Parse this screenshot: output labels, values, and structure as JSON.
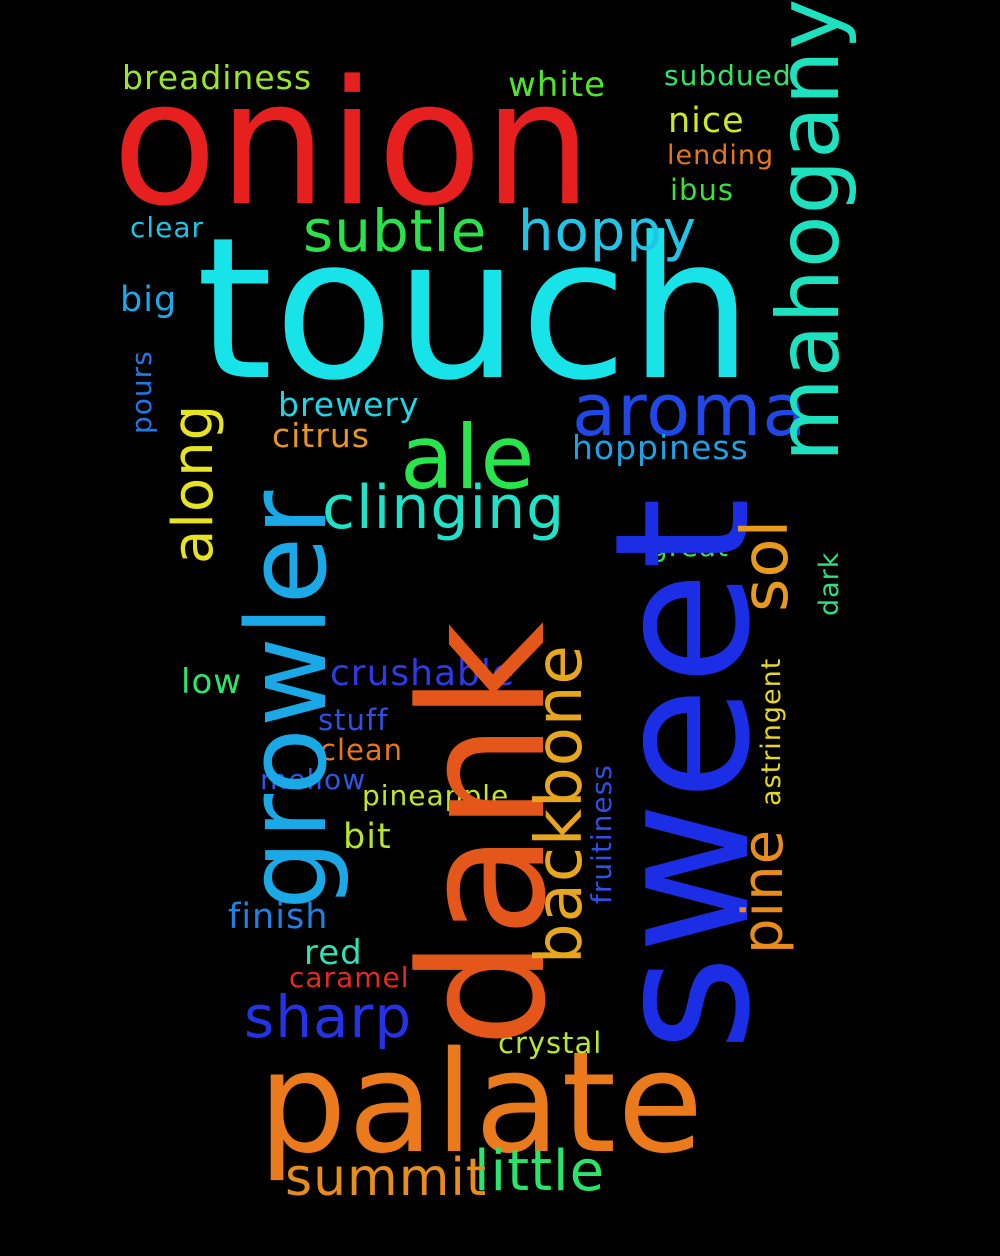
{
  "words": [
    {
      "id": "touch",
      "text": "touch",
      "color": "#17e3e8"
    },
    {
      "id": "sweet",
      "text": "sweet",
      "color": "#1b2ee6"
    },
    {
      "id": "dank",
      "text": "dank",
      "color": "#e5561a"
    },
    {
      "id": "onion",
      "text": "onion",
      "color": "#e5201f"
    },
    {
      "id": "palate",
      "text": "palate",
      "color": "#ea7a1c"
    },
    {
      "id": "growler",
      "text": "growler",
      "color": "#1aa9e6"
    },
    {
      "id": "mahogany",
      "text": "mahogany",
      "color": "#1ee1c0"
    },
    {
      "id": "ale",
      "text": "ale",
      "color": "#27e54a"
    },
    {
      "id": "aroma",
      "text": "aroma",
      "color": "#1f48e6"
    },
    {
      "id": "backbone",
      "text": "backbone",
      "color": "#e8a51e"
    },
    {
      "id": "clinging",
      "text": "clinging",
      "color": "#1fe2c8"
    },
    {
      "id": "subtle",
      "text": "subtle",
      "color": "#2ae34a"
    },
    {
      "id": "hoppy",
      "text": "hoppy",
      "color": "#22c5e8"
    },
    {
      "id": "sol",
      "text": "sol",
      "color": "#e89a1c"
    },
    {
      "id": "along",
      "text": "along",
      "color": "#e6e323"
    },
    {
      "id": "little",
      "text": "little",
      "color": "#28e66a"
    },
    {
      "id": "sharp",
      "text": "sharp",
      "color": "#2433e6"
    },
    {
      "id": "summit",
      "text": "summit",
      "color": "#e88d1b"
    },
    {
      "id": "pine",
      "text": "pine",
      "color": "#e88d1b"
    },
    {
      "id": "breadiness",
      "text": "breadiness",
      "color": "#9be629"
    },
    {
      "id": "white",
      "text": "white",
      "color": "#4fe52b"
    },
    {
      "id": "subdued",
      "text": "subdued",
      "color": "#35e36a"
    },
    {
      "id": "nice",
      "text": "nice",
      "color": "#cde62a"
    },
    {
      "id": "lending",
      "text": "lending",
      "color": "#e5761d"
    },
    {
      "id": "ibus",
      "text": "ibus",
      "color": "#3ae040"
    },
    {
      "id": "clear",
      "text": "clear",
      "color": "#1fc5e6"
    },
    {
      "id": "big",
      "text": "big",
      "color": "#1fa8e6"
    },
    {
      "id": "pours",
      "text": "pours",
      "color": "#1f78e6"
    },
    {
      "id": "brewery",
      "text": "brewery",
      "color": "#1fd6e6"
    },
    {
      "id": "citrus",
      "text": "citrus",
      "color": "#e8961c"
    },
    {
      "id": "hoppiness",
      "text": "hoppiness",
      "color": "#1fa1e6"
    },
    {
      "id": "great",
      "text": "great",
      "color": "#3ae04a"
    },
    {
      "id": "dark",
      "text": "dark",
      "color": "#2de27e"
    },
    {
      "id": "low",
      "text": "low",
      "color": "#2ee36e"
    },
    {
      "id": "crushable",
      "text": "crushable",
      "color": "#2f3ae6"
    },
    {
      "id": "stuff",
      "text": "stuff",
      "color": "#2f50e6"
    },
    {
      "id": "clean",
      "text": "clean",
      "color": "#e8761c"
    },
    {
      "id": "mellow",
      "text": "mellow",
      "color": "#2f55e6"
    },
    {
      "id": "pineapple",
      "text": "pineapple",
      "color": "#c3e62a"
    },
    {
      "id": "bit",
      "text": "bit",
      "color": "#b5e62a"
    },
    {
      "id": "fruitiness",
      "text": "fruitiness",
      "color": "#2f4fe6"
    },
    {
      "id": "astringent",
      "text": "astringent",
      "color": "#e6d62a"
    },
    {
      "id": "finish",
      "text": "finish",
      "color": "#1f80e6"
    },
    {
      "id": "red",
      "text": "red",
      "color": "#2fe3b4"
    },
    {
      "id": "caramel",
      "text": "caramel",
      "color": "#e52a1f"
    },
    {
      "id": "crystal",
      "text": "crystal",
      "color": "#b8e62a"
    }
  ]
}
